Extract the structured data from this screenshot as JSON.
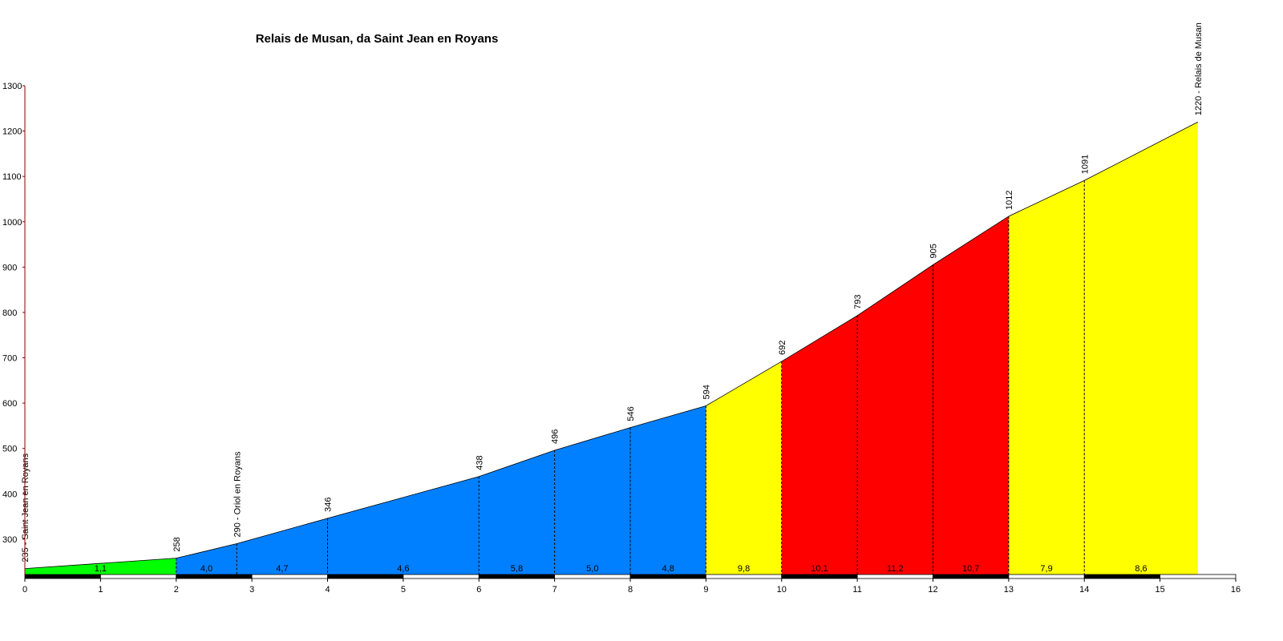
{
  "chart_data": {
    "type": "area",
    "title": "Relais de Musan, da Saint Jean en Royans",
    "x": [
      0,
      2,
      2.8,
      4,
      6,
      7,
      8,
      9,
      10,
      11,
      12,
      13,
      14,
      15.5
    ],
    "values": [
      235,
      258,
      290,
      346,
      438,
      496,
      546,
      594,
      692,
      793,
      905,
      1012,
      1091,
      1220
    ],
    "value_labels": [
      "235 - Saint Jean en Royans",
      "258",
      "290 - Oriol en Royans",
      "346",
      "438",
      "496",
      "546",
      "594",
      "692",
      "793",
      "905",
      "1012",
      "1091",
      "1220 - Relais de Musan"
    ],
    "gradients": [
      {
        "value": 1.1,
        "label": "1,1"
      },
      {
        "value": 4.0,
        "label": "4,0"
      },
      {
        "value": 4.7,
        "label": "4,7"
      },
      {
        "value": 4.6,
        "label": "4,6"
      },
      {
        "value": 5.8,
        "label": "5,8"
      },
      {
        "value": 5.0,
        "label": "5,0"
      },
      {
        "value": 4.8,
        "label": "4,8"
      },
      {
        "value": 9.8,
        "label": "9,8"
      },
      {
        "value": 10.1,
        "label": "10,1"
      },
      {
        "value": 11.2,
        "label": "11,2"
      },
      {
        "value": 10.7,
        "label": "10,7"
      },
      {
        "value": 7.9,
        "label": "7,9"
      },
      {
        "value": 8.6,
        "label": "8,6"
      }
    ],
    "segment_colors": [
      "#00ff00",
      "#0080ff",
      "#0080ff",
      "#0080ff",
      "#0080ff",
      "#0080ff",
      "#0080ff",
      "#ffff00",
      "#ff0000",
      "#ff0000",
      "#ff0000",
      "#ffff00",
      "#ffff00"
    ],
    "xlim": [
      0,
      16
    ],
    "ylim": [
      222,
      1300
    ],
    "xticks": [
      0,
      1,
      2,
      3,
      4,
      5,
      6,
      7,
      8,
      9,
      10,
      11,
      12,
      13,
      14,
      15,
      16
    ],
    "yticks": [
      300,
      400,
      500,
      600,
      700,
      800,
      900,
      1000,
      1100,
      1200,
      1300
    ]
  }
}
